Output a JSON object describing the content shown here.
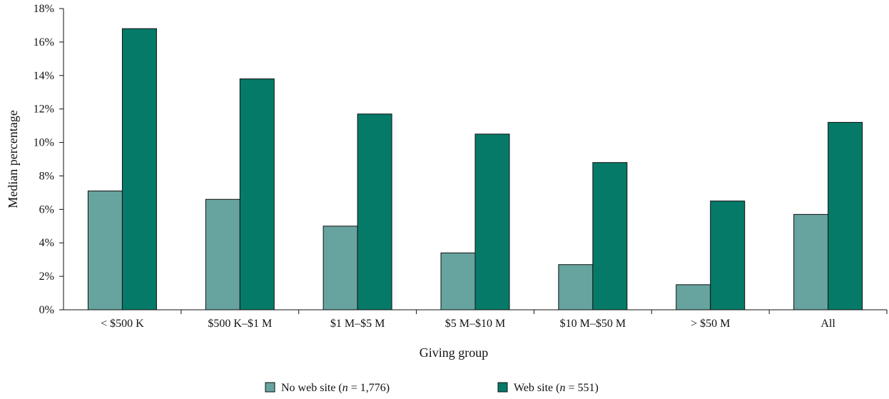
{
  "chart_data": {
    "type": "bar",
    "title": "",
    "xlabel": "Giving group",
    "ylabel": "Median percentage",
    "categories": [
      "< $500 K",
      "$500 K–$1 M",
      "$1 M–$5 M",
      "$5 M–$10 M",
      "$10 M–$50 M",
      "> $50 M",
      "All"
    ],
    "series": [
      {
        "name": "No web site",
        "n_label": "n",
        "n_value": "1,776",
        "color": "#67a39f",
        "values": [
          7.1,
          6.6,
          5.0,
          3.4,
          2.7,
          1.5,
          5.7
        ]
      },
      {
        "name": "Web site",
        "n_label": "n",
        "n_value": "551",
        "color": "#067a68",
        "values": [
          16.8,
          13.8,
          11.7,
          10.5,
          8.8,
          6.5,
          11.2
        ]
      }
    ],
    "ylim": [
      0,
      18
    ],
    "yticks": [
      0,
      2,
      4,
      6,
      8,
      10,
      12,
      14,
      16,
      18
    ],
    "ytick_labels": [
      "0%",
      "2%",
      "4%",
      "6%",
      "8%",
      "10%",
      "12%",
      "14%",
      "16%",
      "18%"
    ],
    "grid": false,
    "legend_position": "bottom-center"
  }
}
